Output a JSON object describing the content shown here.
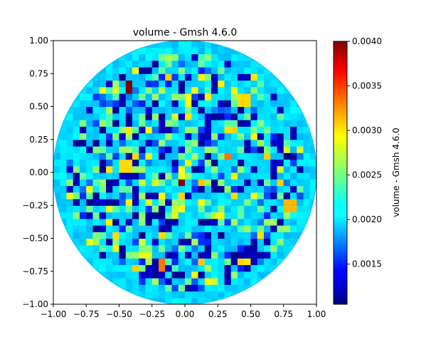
{
  "chart_data": {
    "type": "heatmap",
    "title": "volume - Gmsh 4.6.0",
    "xlabel": "",
    "ylabel": "",
    "xlim": [
      -1.0,
      1.0
    ],
    "ylim": [
      -1.0,
      1.0
    ],
    "x_ticks": [
      "−1.00",
      "−0.75",
      "−0.50",
      "−0.25",
      "0.00",
      "0.25",
      "0.50",
      "0.75",
      "1.00"
    ],
    "y_ticks": [
      "−1.00",
      "−0.75",
      "−0.50",
      "−0.25",
      "0.00",
      "0.25",
      "0.50",
      "0.75",
      "1.00"
    ],
    "x_tick_values": [
      -1.0,
      -0.75,
      -0.5,
      -0.25,
      0.0,
      0.25,
      0.5,
      0.75,
      1.0
    ],
    "y_tick_values": [
      -1.0,
      -0.75,
      -0.5,
      -0.25,
      0.0,
      0.25,
      0.5,
      0.75,
      1.0
    ],
    "domain_shape": "unit disk",
    "colormap": "jet",
    "grid": false,
    "colorbar": {
      "label": "volume - Gmsh 4.6.0",
      "range": [
        0.00105,
        0.004
      ],
      "ticks": [
        "0.0015",
        "0.0020",
        "0.0025",
        "0.0030",
        "0.0035",
        "0.0040"
      ],
      "tick_values": [
        0.0015,
        0.002,
        0.0025,
        0.003,
        0.0035,
        0.004
      ]
    },
    "hotspots": [
      {
        "x": -0.43,
        "y": 0.66,
        "value": 0.004
      },
      {
        "x": -0.02,
        "y": -0.08,
        "value": 0.004
      },
      {
        "x": -0.18,
        "y": -0.7,
        "value": 0.0033
      },
      {
        "x": 0.33,
        "y": 0.13,
        "value": 0.0033
      },
      {
        "x": 0.45,
        "y": 0.55,
        "value": 0.003
      },
      {
        "x": 0.8,
        "y": -0.25,
        "value": 0.0031
      },
      {
        "x": -0.45,
        "y": 0.05,
        "value": 0.003
      }
    ]
  }
}
